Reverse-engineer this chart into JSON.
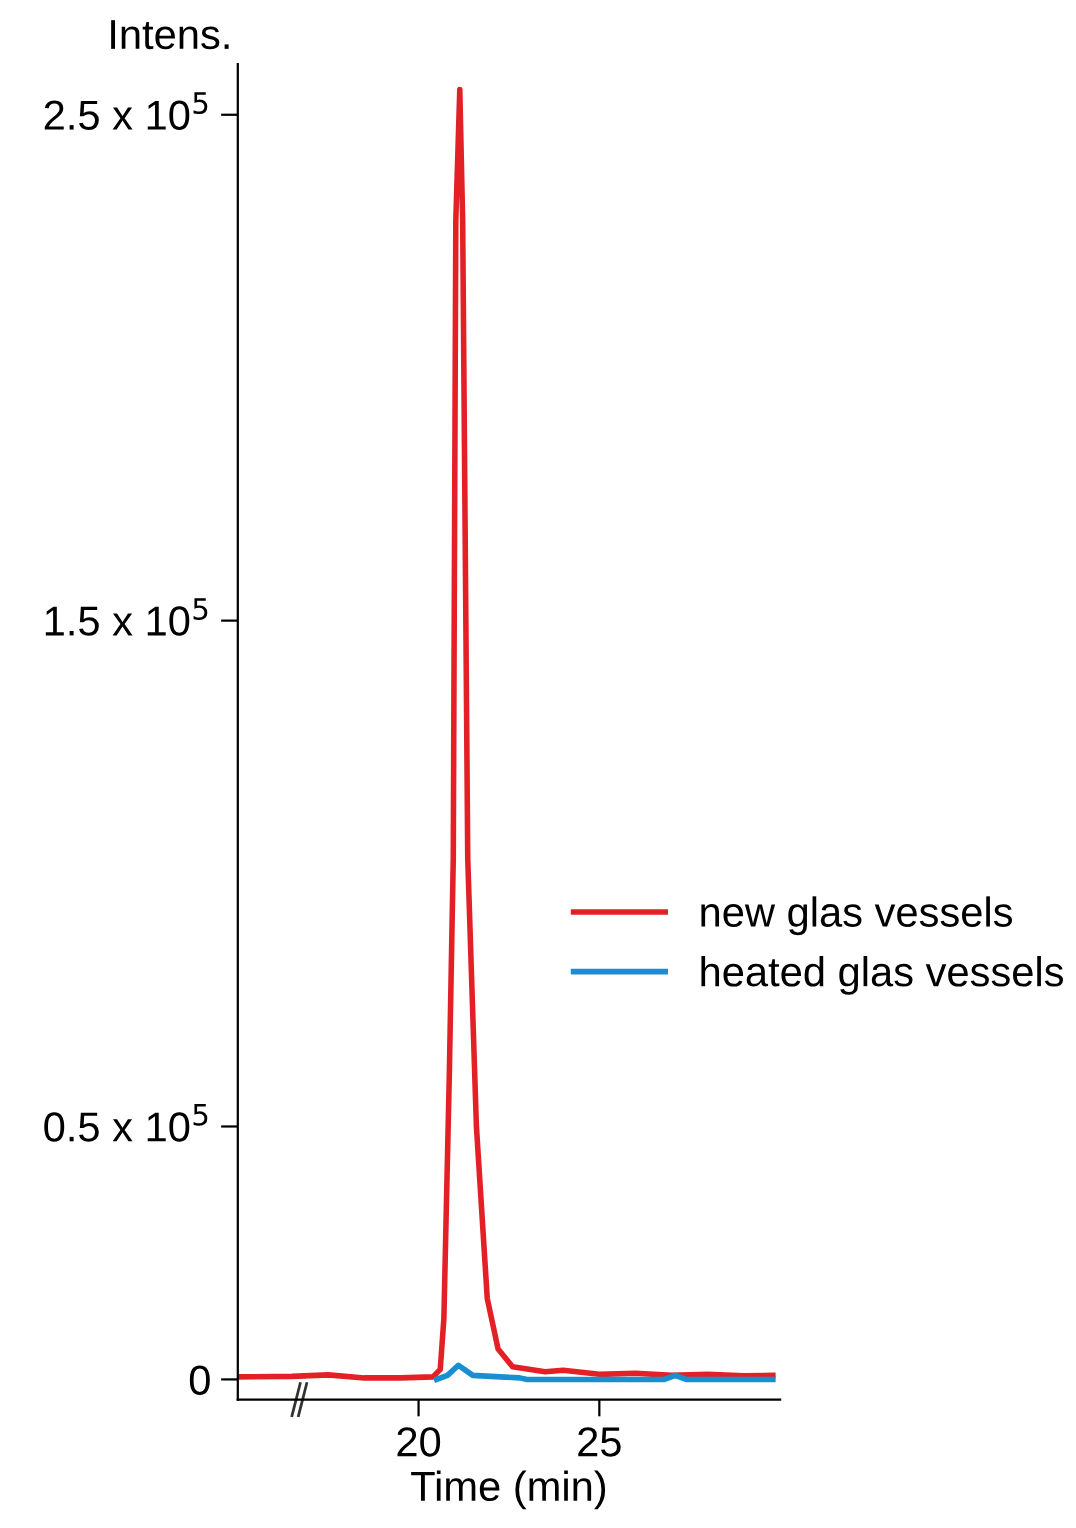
{
  "chart_data": {
    "type": "line",
    "xlabel": "Time (min)",
    "ylabel": "Intens.",
    "xlim": [
      15,
      30
    ],
    "xticks": [
      20,
      25
    ],
    "ylim": [
      -4000,
      260000
    ],
    "yticks": [
      {
        "value": 0,
        "label": "0"
      },
      {
        "value": 50000,
        "label": "0.5 x 10$^{5}$"
      },
      {
        "value": 150000,
        "label": "1.5 x 10$^{5}$"
      },
      {
        "value": 250000,
        "label": "2.5 x 10$^{5}$"
      }
    ],
    "grid": false,
    "legend": "right",
    "marker": "none",
    "line_style": "solid",
    "series": [
      {
        "name": "new glas vessels",
        "color": "#e32026",
        "x": [
          15,
          16.5,
          17.5,
          18.5,
          19.5,
          20.4,
          20.6,
          20.7,
          20.85,
          20.96,
          21.03,
          21.14,
          21.22,
          21.36,
          21.6,
          21.9,
          22.2,
          22.6,
          23.5,
          24,
          25,
          26,
          27,
          28,
          29,
          29.8
        ],
        "values": [
          500,
          600,
          900,
          300,
          300,
          500,
          2000,
          12000,
          60000,
          103000,
          229000,
          255000,
          229000,
          103000,
          50000,
          16000,
          6000,
          2500,
          1500,
          1800,
          1000,
          1200,
          800,
          1000,
          700,
          800
        ]
      },
      {
        "name": "heated glas vessels",
        "color": "#1a8fd0",
        "x": [
          20.5,
          20.8,
          21.1,
          21.5,
          22,
          22.8,
          23,
          26.8,
          27.1,
          27.4,
          29.8
        ],
        "values": [
          0,
          800,
          2800,
          800,
          600,
          300,
          0,
          0,
          800,
          0,
          0
        ]
      }
    ]
  }
}
